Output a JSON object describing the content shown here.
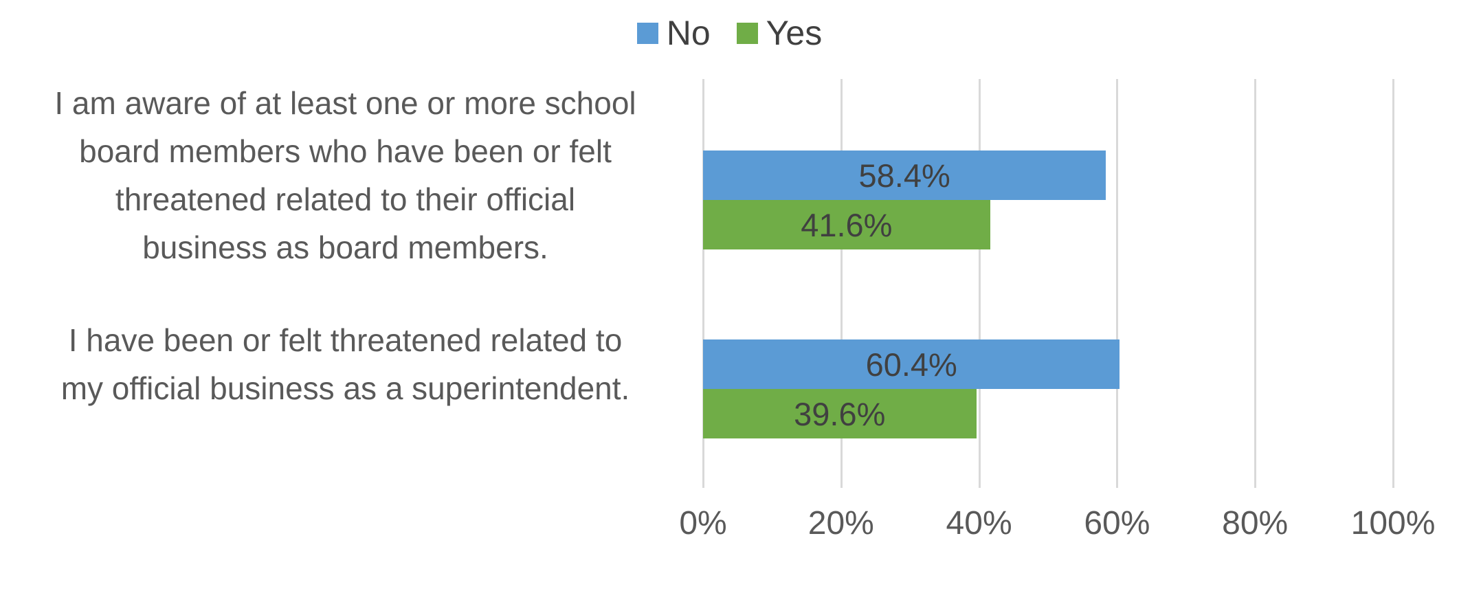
{
  "chart_data": {
    "type": "bar",
    "orientation": "horizontal",
    "title": "",
    "background": "#FFFFFF",
    "categories": [
      "I am aware of at least one or more school board members who have been or felt threatened related to their official business as board members.",
      "I have been or felt threatened related to my official business as a superintendent."
    ],
    "category_lines": [
      [
        "I am aware of at least one or more school",
        "board members who have been or felt",
        "threatened related to their official",
        "business as board members."
      ],
      [
        "I have been or felt threatened related to",
        "my official business as a superintendent."
      ]
    ],
    "series": [
      {
        "name": "No",
        "color": "#5B9BD5",
        "values": [
          58.4,
          60.4
        ],
        "labels": [
          "58.4%",
          "60.4%"
        ]
      },
      {
        "name": "Yes",
        "color": "#70AD47",
        "values": [
          41.6,
          39.6
        ],
        "labels": [
          "41.6%",
          "39.6%"
        ]
      }
    ],
    "x_axis": {
      "min": 0,
      "max": 100,
      "ticks": [
        "0%",
        "20%",
        "40%",
        "60%",
        "80%",
        "100%"
      ]
    },
    "grid": true,
    "legend_position": "top",
    "colors": {
      "gridline": "#D9D9D9",
      "data_label": "#404040",
      "category_label": "#595959",
      "axis_label": "#595959",
      "legend_label": "#404040"
    }
  }
}
